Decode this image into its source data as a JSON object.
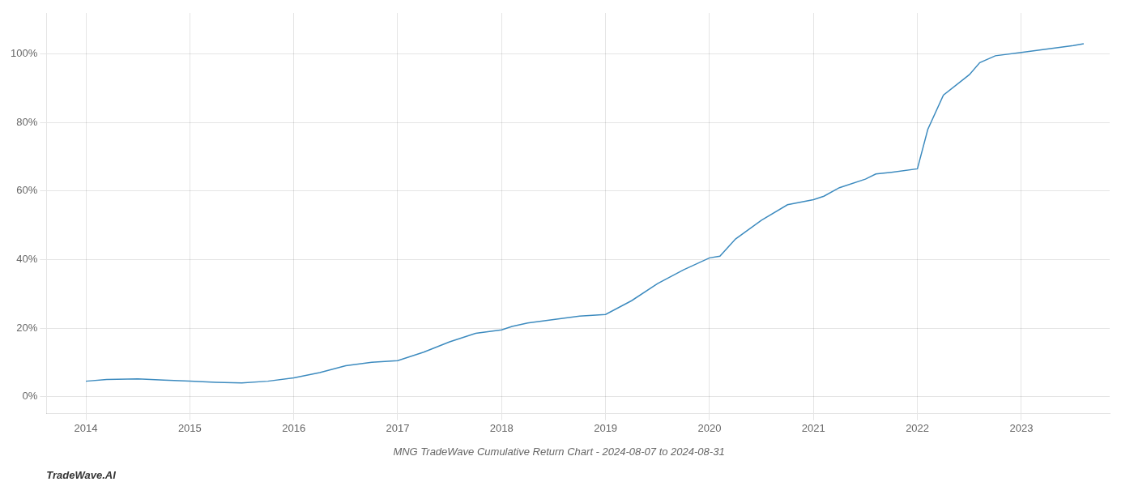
{
  "chart_data": {
    "type": "line",
    "title": "MNG TradeWave Cumulative Return Chart - 2024-08-07 to 2024-08-31",
    "annotations": [
      "TradeWave.AI"
    ],
    "x": [
      2014.0,
      2014.2,
      2014.5,
      2014.75,
      2015.0,
      2015.25,
      2015.5,
      2015.75,
      2016.0,
      2016.25,
      2016.5,
      2016.75,
      2017.0,
      2017.25,
      2017.5,
      2017.75,
      2018.0,
      2018.1,
      2018.25,
      2018.5,
      2018.75,
      2019.0,
      2019.25,
      2019.5,
      2019.75,
      2020.0,
      2020.1,
      2020.25,
      2020.5,
      2020.75,
      2021.0,
      2021.1,
      2021.25,
      2021.5,
      2021.6,
      2021.75,
      2022.0,
      2022.1,
      2022.25,
      2022.5,
      2022.6,
      2022.75,
      2023.0,
      2023.25,
      2023.5,
      2023.6
    ],
    "values": [
      4.5,
      5.0,
      5.2,
      4.8,
      4.5,
      4.2,
      4.0,
      4.5,
      5.5,
      7.0,
      9.0,
      10.0,
      10.5,
      13.0,
      16.0,
      18.5,
      19.5,
      20.5,
      21.5,
      22.5,
      23.5,
      24.0,
      28.0,
      33.0,
      37.0,
      40.5,
      41.0,
      46.0,
      51.5,
      56.0,
      57.5,
      58.5,
      61.0,
      63.5,
      65.0,
      65.5,
      66.5,
      78.0,
      88.0,
      94.0,
      97.5,
      99.5,
      100.5,
      101.5,
      102.5,
      103.0
    ],
    "color": "#3d8bbf",
    "xlim": [
      2013.62,
      2023.85
    ],
    "ylim": [
      -5,
      112
    ],
    "xticks": [
      2014,
      2015,
      2016,
      2017,
      2018,
      2019,
      2020,
      2021,
      2022,
      2023
    ],
    "yticks": [
      {
        "value": 0,
        "label": "0%"
      },
      {
        "value": 20,
        "label": "20%"
      },
      {
        "value": 40,
        "label": "40%"
      },
      {
        "value": 60,
        "label": "60%"
      },
      {
        "value": 80,
        "label": "80%"
      },
      {
        "value": 100,
        "label": "100%"
      }
    ],
    "grid": true
  }
}
